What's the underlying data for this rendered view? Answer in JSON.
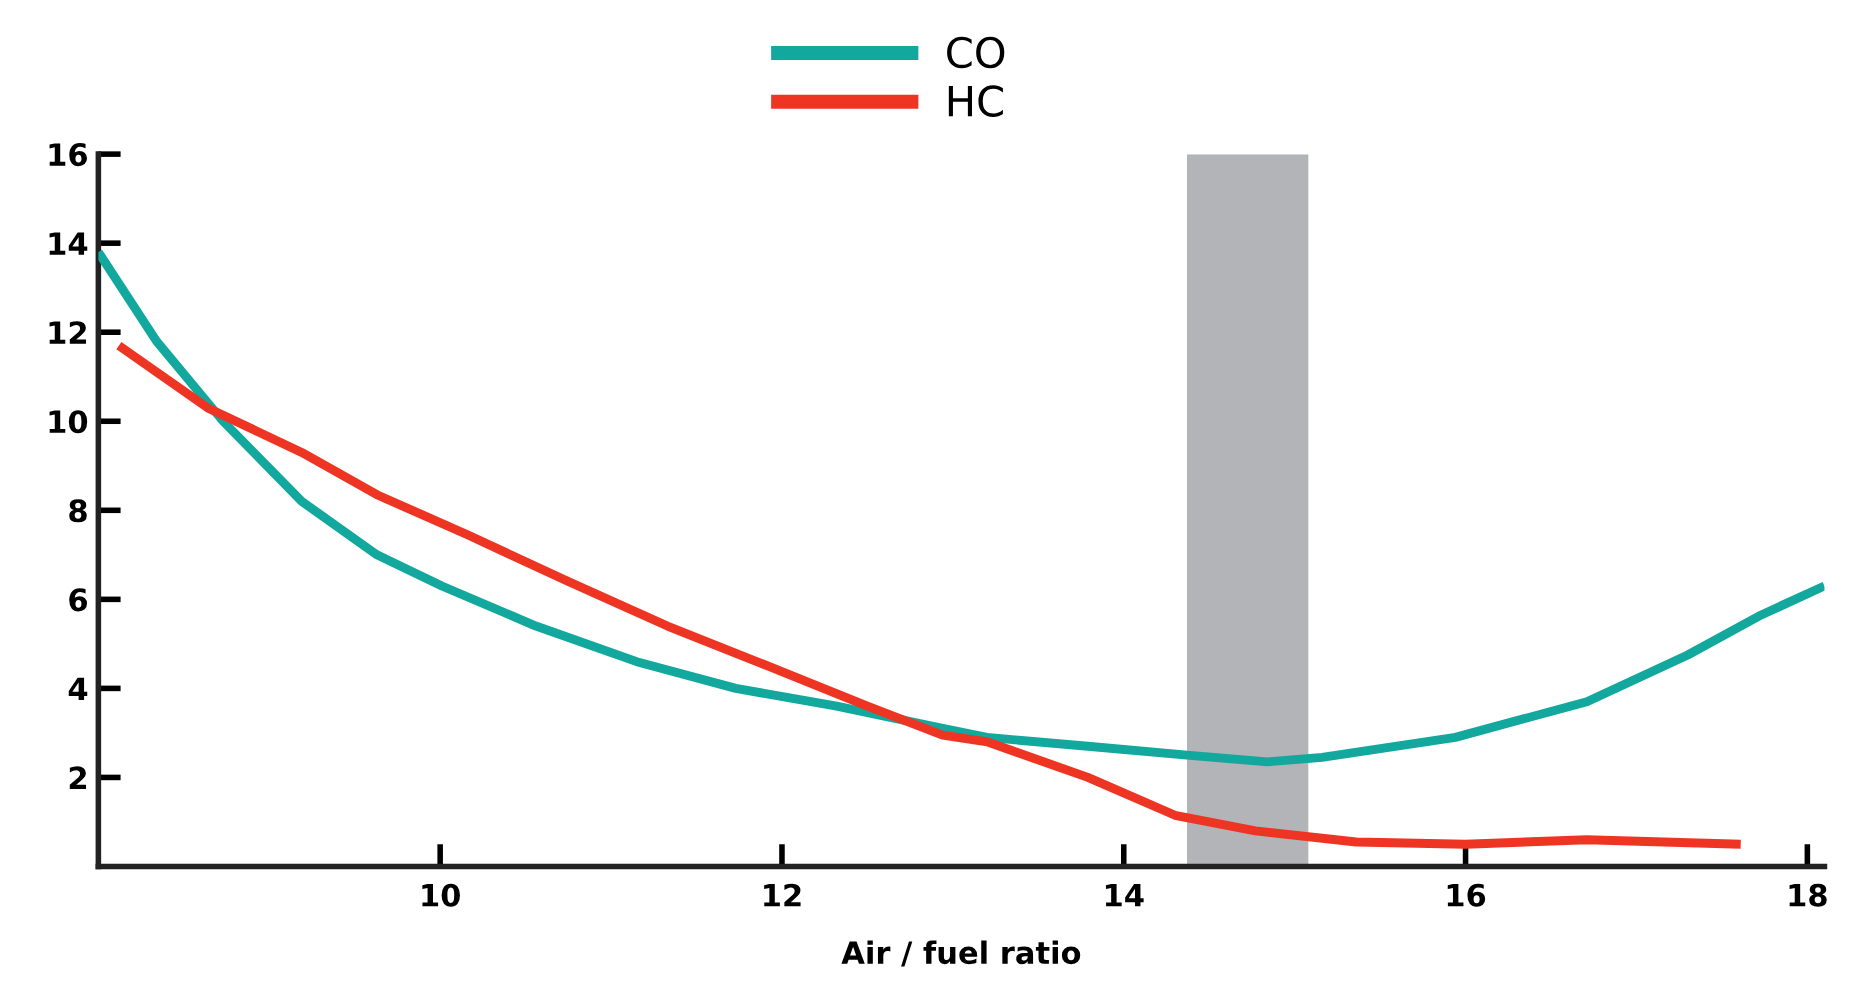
{
  "chart_data": {
    "type": "line",
    "xlabel": "Air / fuel ratio",
    "xlim": [
      8,
      18.1
    ],
    "ylim": [
      0,
      16
    ],
    "xticks": [
      10,
      12,
      14,
      16,
      18
    ],
    "yticks": [
      2,
      4,
      6,
      8,
      10,
      12,
      14,
      16
    ],
    "grid": false,
    "legend": "top",
    "line_style": "solid",
    "bands": [
      {
        "axis": "x",
        "from": 14.37,
        "to": 15.08,
        "color": "#b2b4b8"
      }
    ],
    "series": [
      {
        "name": "CO",
        "color": "#13a89e",
        "x": [
          8.0,
          8.34,
          8.73,
          9.19,
          9.63,
          10.01,
          10.56,
          11.15,
          11.73,
          12.32,
          12.94,
          13.2,
          13.79,
          14.37,
          14.84,
          15.16,
          15.94,
          16.71,
          17.3,
          17.73,
          18.1
        ],
        "values": [
          13.8,
          11.8,
          10.0,
          8.2,
          7.0,
          6.3,
          5.4,
          4.6,
          4.0,
          3.6,
          3.1,
          2.9,
          2.7,
          2.5,
          2.35,
          2.45,
          2.9,
          3.7,
          4.75,
          5.65,
          6.3
        ]
      },
      {
        "name": "HC",
        "color": "#ee3524",
        "x": [
          8.12,
          8.64,
          9.19,
          9.63,
          10.16,
          10.75,
          11.33,
          11.92,
          12.5,
          12.94,
          13.2,
          13.79,
          14.3,
          14.77,
          15.36,
          16.0,
          16.71,
          17.61
        ],
        "values": [
          11.7,
          10.3,
          9.3,
          8.35,
          7.45,
          6.4,
          5.4,
          4.5,
          3.6,
          2.95,
          2.8,
          2.0,
          1.15,
          0.8,
          0.55,
          0.5,
          0.6,
          0.5
        ]
      }
    ]
  }
}
